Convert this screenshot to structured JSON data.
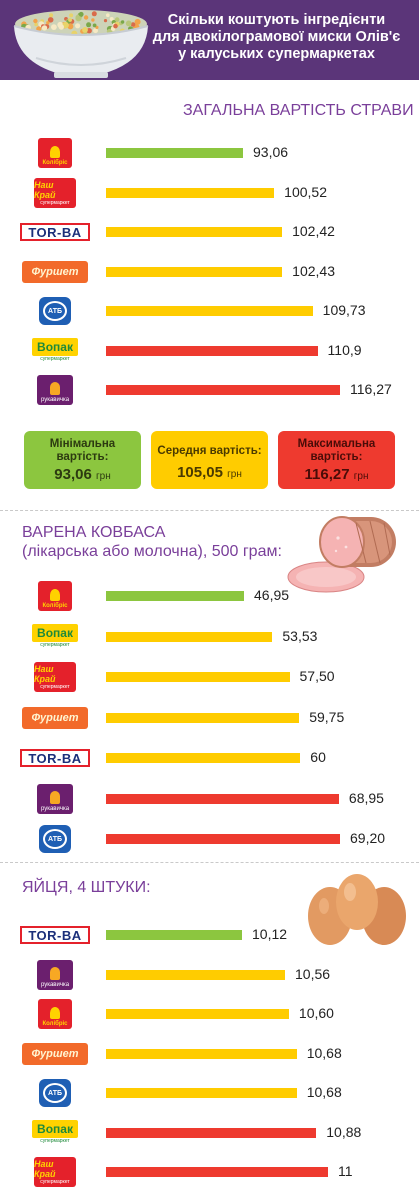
{
  "header": {
    "title_lines": [
      "Скільки коштують інгредієнти",
      "для двокілограмової миски Олів'є",
      "у калуських супермаркетах"
    ]
  },
  "colors": {
    "header_bg": "#5b3579",
    "section_title": "#7a3f9a",
    "min_bar": "#8cc63f",
    "mid_bar": "#ffcc00",
    "max_bar": "#ee3a2f"
  },
  "logos": {
    "kolibris": "Колібріс",
    "nash_krai": "Наш Край",
    "nash_krai_sub": "супермаркет",
    "torba": "TOR-BA",
    "furshet": "Фуршет",
    "atb": "АТБ",
    "vopak": "Вопак",
    "vopak_sub": "супермаркет",
    "rukavychka": "рукавичка"
  },
  "chart_data": [
    {
      "type": "bar",
      "title": "ЗАГАЛЬНА ВАРТІСТЬ СТРАВИ",
      "categories": [
        "kolibris",
        "nash_krai",
        "torba",
        "furshet",
        "atb",
        "vopak",
        "rukavychka"
      ],
      "values": [
        93.06,
        100.52,
        102.42,
        102.43,
        109.73,
        110.9,
        116.27
      ],
      "value_labels": [
        "93,06",
        "100,52",
        "102,42",
        "102,43",
        "109,73",
        "110,9",
        "116,27"
      ],
      "bar_levels": [
        "min",
        "mid",
        "mid",
        "mid",
        "mid",
        "max",
        "max"
      ],
      "summary": [
        {
          "label_lines": [
            "Мінімальна",
            "вартість:"
          ],
          "value": "93,06",
          "unit": "грн",
          "level": "min"
        },
        {
          "label_lines": [
            "Середня вартість:"
          ],
          "value": "105,05",
          "unit": "грн",
          "level": "mid"
        },
        {
          "label_lines": [
            "Максимальна",
            "вартість:"
          ],
          "value": "116,27",
          "unit": "грн",
          "level": "max"
        }
      ]
    },
    {
      "type": "bar",
      "title_lines": [
        "ВАРЕНА КОВБАСА",
        "(лікарська або молочна), 500 грам:"
      ],
      "categories": [
        "kolibris",
        "vopak",
        "nash_krai",
        "furshet",
        "torba",
        "rukavychka",
        "atb"
      ],
      "values": [
        46.95,
        53.53,
        57.5,
        59.75,
        60,
        68.95,
        69.2
      ],
      "value_labels": [
        "46,95",
        "53,53",
        "57,50",
        "59,75",
        "60",
        "68,95",
        "69,20"
      ],
      "bar_levels": [
        "min",
        "mid",
        "mid",
        "mid",
        "mid",
        "max",
        "max"
      ]
    },
    {
      "type": "bar",
      "title": "ЯЙЦЯ, 4 ШТУКИ:",
      "categories": [
        "torba",
        "rukavychka",
        "kolibris",
        "furshet",
        "atb",
        "vopak",
        "nash_krai"
      ],
      "values": [
        10.12,
        10.56,
        10.6,
        10.68,
        10.68,
        10.88,
        11
      ],
      "value_labels": [
        "10,12",
        "10,56",
        "10,60",
        "10,68",
        "10,68",
        "10,88",
        "11"
      ],
      "bar_levels": [
        "min",
        "mid",
        "mid",
        "mid",
        "mid",
        "max",
        "max"
      ]
    }
  ]
}
